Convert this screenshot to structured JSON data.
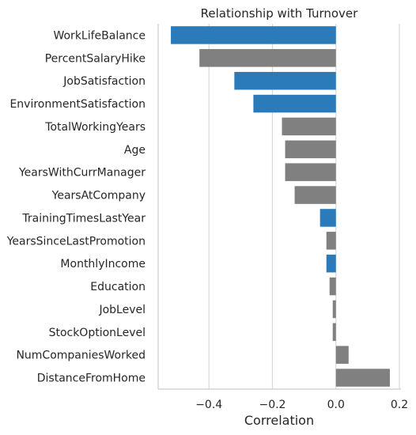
{
  "chart_data": {
    "type": "bar",
    "orientation": "horizontal",
    "title": "Relationship with Turnover",
    "xlabel": "Correlation",
    "ylabel": "",
    "xlim": [
      -0.56,
      0.205
    ],
    "xticks": [
      -0.4,
      -0.2,
      0.0,
      0.2
    ],
    "xtick_labels": [
      "−0.4",
      "−0.2",
      "0.0",
      "0.2"
    ],
    "grid": "vertical",
    "colors": {
      "highlight": "#2b7bba",
      "default": "#808080"
    },
    "categories": [
      "WorkLifeBalance",
      "PercentSalaryHike",
      "JobSatisfaction",
      "EnvironmentSatisfaction",
      "TotalWorkingYears",
      "Age",
      "YearsWithCurrManager",
      "YearsAtCompany",
      "TrainingTimesLastYear",
      "YearsSinceLastPromotion",
      "MonthlyIncome",
      "Education",
      "JobLevel",
      "StockOptionLevel",
      "NumCompaniesWorked",
      "DistanceFromHome"
    ],
    "values": [
      -0.52,
      -0.43,
      -0.32,
      -0.26,
      -0.17,
      -0.16,
      -0.16,
      -0.13,
      -0.05,
      -0.03,
      -0.03,
      -0.02,
      -0.01,
      -0.01,
      0.04,
      0.17
    ],
    "highlighted": [
      true,
      false,
      true,
      true,
      false,
      false,
      false,
      false,
      true,
      false,
      true,
      false,
      false,
      false,
      false,
      false
    ]
  }
}
